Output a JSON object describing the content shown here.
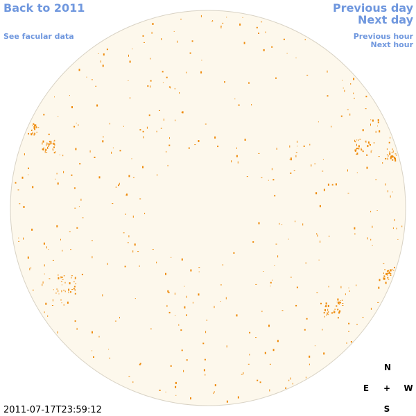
{
  "links": {
    "back": "Back to 2011",
    "facular": "See facular data",
    "previous_day": "Previous day",
    "next_day": "Next day",
    "previous_hour": "Previous hour",
    "next_hour": "Next hour"
  },
  "timestamp": "2011-07-17T23:59:12",
  "compass": {
    "north": "N",
    "east": "E",
    "center": "+",
    "west": "W",
    "south": "S"
  }
}
